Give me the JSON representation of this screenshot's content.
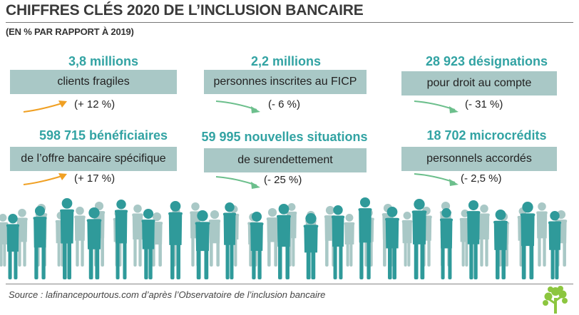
{
  "header": {
    "title": "CHIFFRES CLÉS 2020 DE L’INCLUSION BANCAIRE",
    "subtitle": "(EN % PAR RAPPORT À 2019)"
  },
  "stats": [
    {
      "figure": "3,8 millions",
      "label": "clients fragiles",
      "change": "(+ 12 %)",
      "trend": "up"
    },
    {
      "figure": "2,2 millions",
      "label": "personnes inscrites au FICP",
      "change": "(- 6 %)",
      "trend": "down"
    },
    {
      "figure": "28 923 désignations",
      "label": "pour droit au compte",
      "change": "(- 31 %)",
      "trend": "down"
    },
    {
      "figure": "598 715 bénéficiaires",
      "label": "de l’offre bancaire spécifique",
      "change": "(+ 17 %)",
      "trend": "up"
    },
    {
      "figure": "59 995 nouvelles situations",
      "label": "de surendettement",
      "change": "(- 25 %)",
      "trend": "down"
    },
    {
      "figure": "18 702 microcrédits",
      "label": "personnels accordés",
      "change": "(- 2,5 %)",
      "trend": "down"
    }
  ],
  "colors": {
    "accent_teal": "#32a3a3",
    "band": "#a9c8c6",
    "arrow_up": "#f0a023",
    "arrow_down": "#6cbf8c",
    "crowd_dark": "#2f9a9a",
    "crowd_light": "#a9c8c6",
    "logo": "#8cc63f"
  },
  "footer": {
    "source": "Source : lafinancepourtous.com d’après l’Observatoire de l’inclusion bancaire",
    "logo_icon": "tree-logo-icon"
  }
}
